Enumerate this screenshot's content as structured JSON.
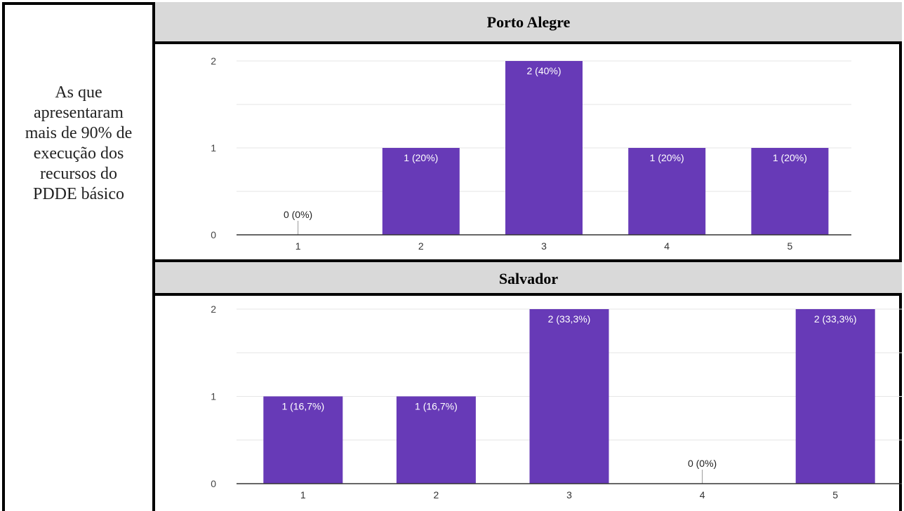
{
  "row_label": [
    "As que",
    "apresentaram",
    "mais de 90% de",
    "execução dos",
    "recursos do",
    "PDDE básico"
  ],
  "colors": {
    "bar": "#673ab7",
    "header_bg": "#d9d9d9",
    "gridline": "#e6e6e6",
    "axis": "#333333"
  },
  "chart_data": [
    {
      "type": "bar",
      "title": "Porto Alegre",
      "categories": [
        "1",
        "2",
        "3",
        "4",
        "5"
      ],
      "values": [
        0,
        1,
        2,
        1,
        1
      ],
      "data_labels": [
        "0 (0%)",
        "1 (20%)",
        "2 (40%)",
        "1 (20%)",
        "1 (20%)"
      ],
      "yticks": [
        "0",
        "1",
        "2"
      ],
      "ylim": [
        0,
        2
      ],
      "grid": true
    },
    {
      "type": "bar",
      "title": "Salvador",
      "categories": [
        "1",
        "2",
        "3",
        "4",
        "5"
      ],
      "values": [
        1,
        1,
        2,
        0,
        2
      ],
      "data_labels": [
        "1 (16,7%)",
        "1 (16,7%)",
        "2 (33,3%)",
        "0 (0%)",
        "2 (33,3%)"
      ],
      "yticks": [
        "0",
        "1",
        "2"
      ],
      "ylim": [
        0,
        2
      ],
      "grid": true
    }
  ]
}
